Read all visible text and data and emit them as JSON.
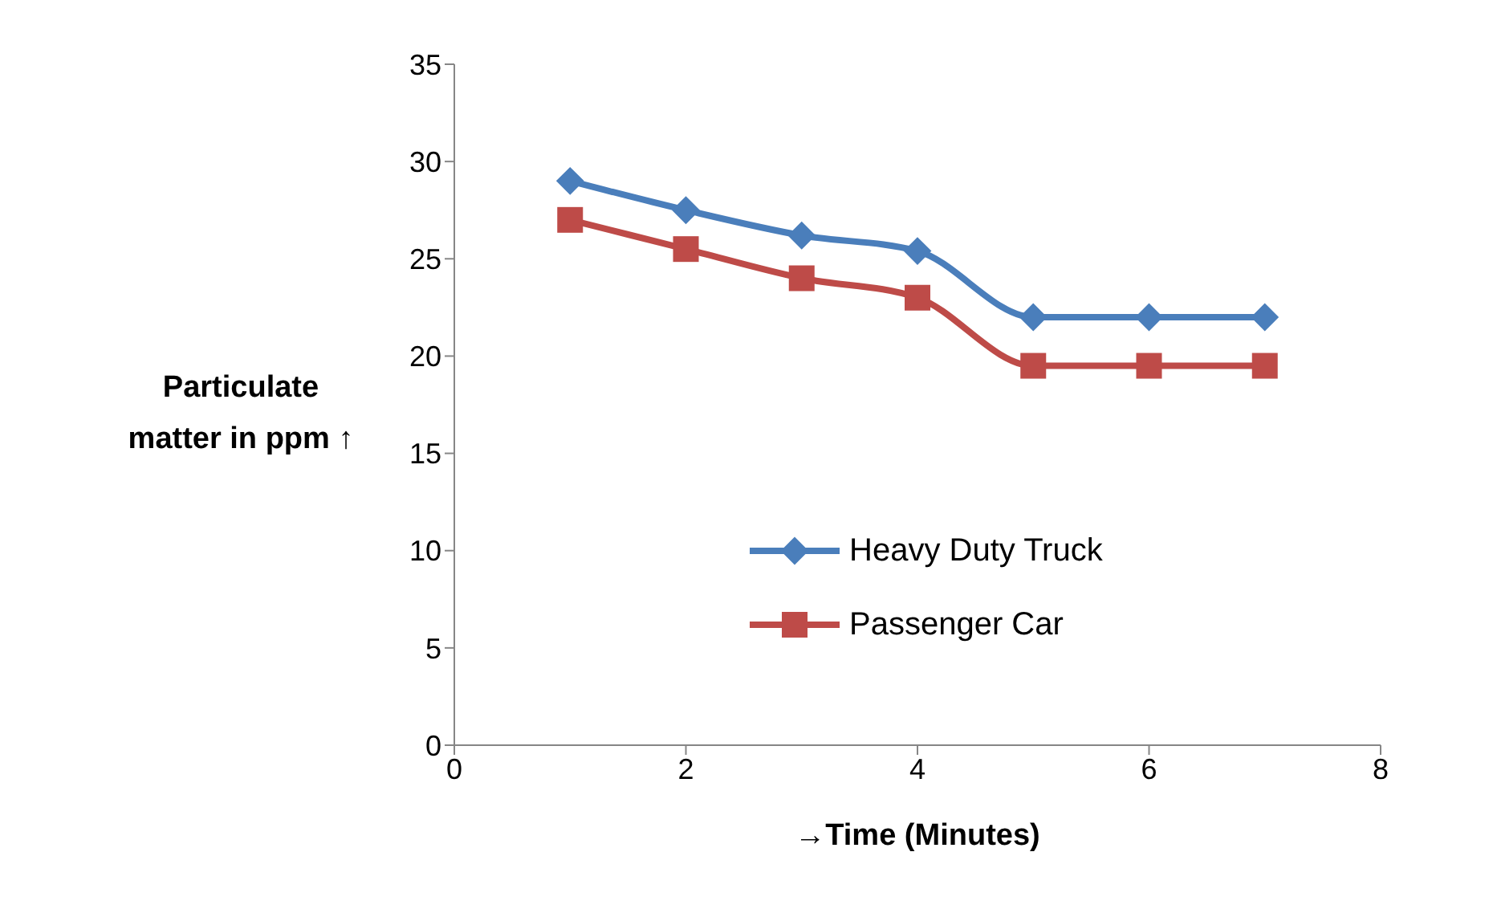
{
  "chart_data": {
    "type": "line",
    "xlabel": "→Time (Minutes)",
    "ylabel": "Particulate matter in ppm ↑",
    "x": [
      1,
      2,
      3,
      4,
      5,
      6,
      7
    ],
    "series": [
      {
        "name": "Heavy Duty Truck",
        "color": "#4a7ebb",
        "marker": "diamond",
        "values": [
          29,
          27.5,
          26.2,
          25.4,
          22,
          22,
          22
        ]
      },
      {
        "name": "Passenger Car",
        "color": "#be4b48",
        "marker": "square",
        "values": [
          27,
          25.5,
          24,
          23,
          19.5,
          19.5,
          19.5
        ]
      }
    ],
    "xlim": [
      0,
      8
    ],
    "xticks": [
      0,
      2,
      4,
      6,
      8
    ],
    "ylim": [
      0,
      35
    ],
    "yticks": [
      0,
      5,
      10,
      15,
      20,
      25,
      30,
      35
    ],
    "grid": false,
    "legend": "bottom"
  }
}
